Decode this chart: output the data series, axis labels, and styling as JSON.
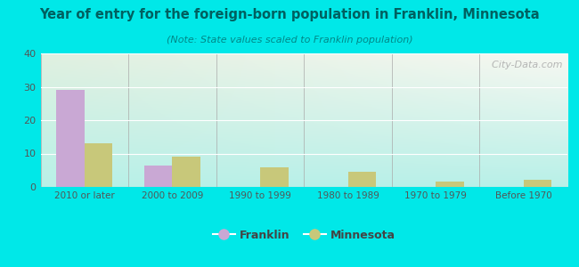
{
  "title": "Year of entry for the foreign-born population in Franklin, Minnesota",
  "subtitle": "(Note: State values scaled to Franklin population)",
  "categories": [
    "2010 or later",
    "2000 to 2009",
    "1990 to 1999",
    "1980 to 1989",
    "1970 to 1979",
    "Before 1970"
  ],
  "franklin_values": [
    29,
    6.5,
    0,
    0,
    0,
    0
  ],
  "minnesota_values": [
    13,
    9,
    6,
    4.5,
    1.7,
    2.2
  ],
  "franklin_color": "#c9a8d4",
  "minnesota_color": "#c8c87a",
  "background_outer": "#00e8e8",
  "background_inner_topleft": "#e0f0e0",
  "background_inner_topright": "#f5f5ee",
  "background_inner_bottom": "#b8f0e8",
  "ylim": [
    0,
    40
  ],
  "yticks": [
    0,
    10,
    20,
    30,
    40
  ],
  "bar_width": 0.32,
  "watermark": "  City-Data.com",
  "title_color": "#006060",
  "subtitle_color": "#008888",
  "tick_color": "#555555",
  "separator_color": "#aaaaaa"
}
